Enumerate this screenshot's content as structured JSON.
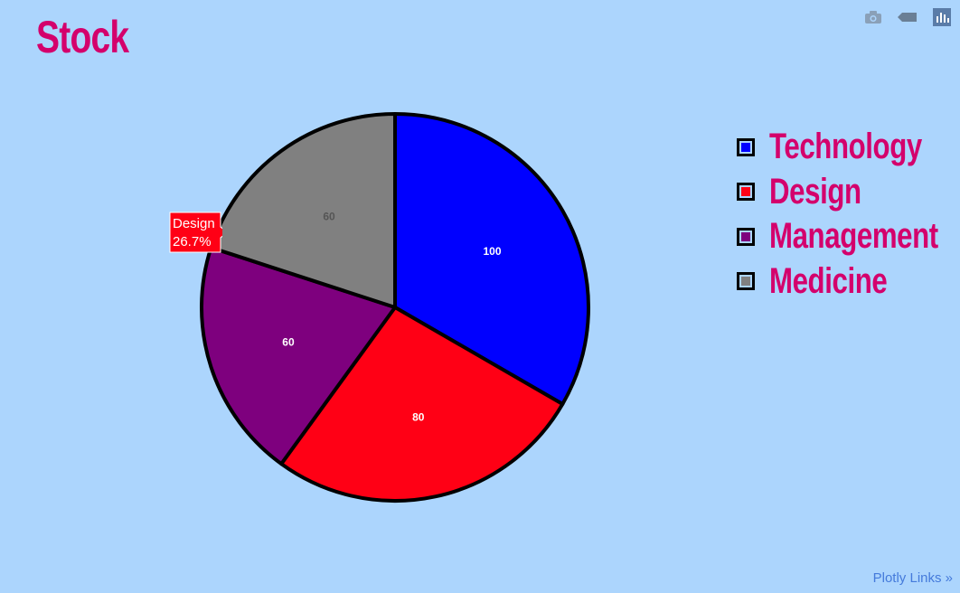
{
  "title": "Stock",
  "modebar": {
    "icons": [
      "camera-icon",
      "tag-icon",
      "plotly-logo-icon"
    ]
  },
  "links_label": "Plotly Links »",
  "tooltip": {
    "label": "Design",
    "percent": "26.7%",
    "color": "#ff0015"
  },
  "chart_data": {
    "type": "pie",
    "title": "Stock",
    "labels": [
      "Technology",
      "Design",
      "Management",
      "Medicine"
    ],
    "values": [
      100,
      80,
      60,
      60
    ],
    "colors": [
      "#0000ff",
      "#ff0015",
      "#7e007e",
      "#808080"
    ],
    "text_colors": [
      "#ffffff",
      "#ffffff",
      "#ffffff",
      "#555555"
    ],
    "sort": false,
    "direction": "clockwise",
    "legend_position": "right",
    "outline_color": "#000000"
  }
}
